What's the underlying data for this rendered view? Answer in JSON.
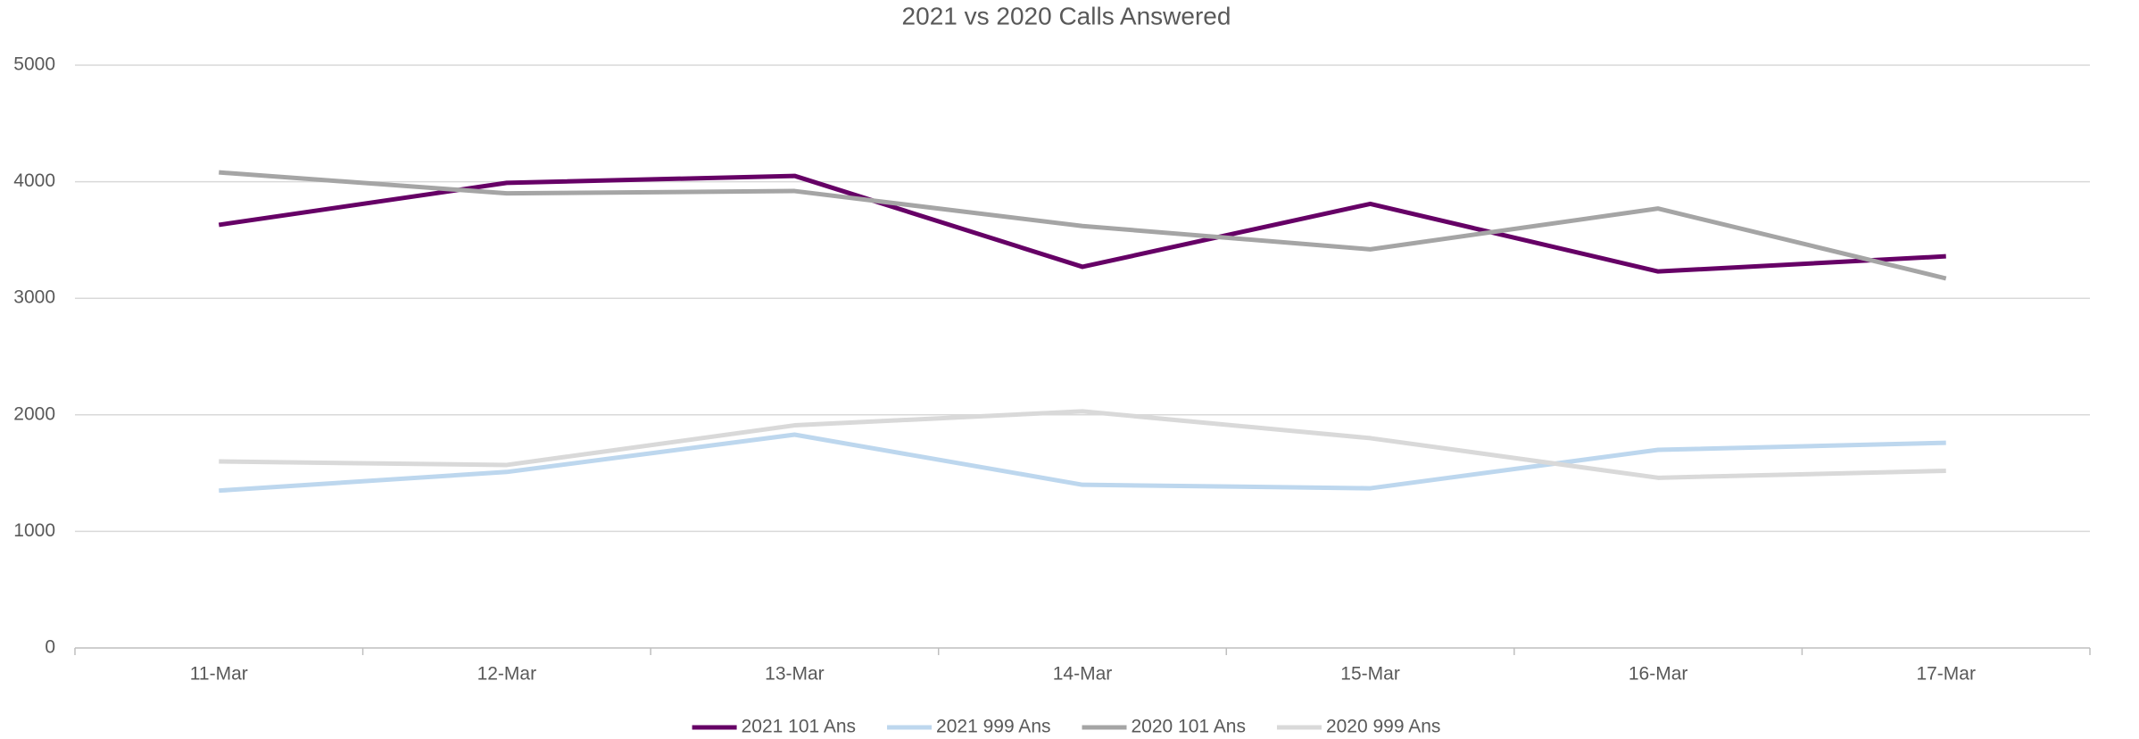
{
  "chart_data": {
    "type": "line",
    "title": "2021 vs 2020 Calls Answered",
    "categories": [
      "11-Mar",
      "12-Mar",
      "13-Mar",
      "14-Mar",
      "15-Mar",
      "16-Mar",
      "17-Mar"
    ],
    "series": [
      {
        "name": "2021 101 Ans",
        "color": "#660066",
        "values": [
          3630,
          3990,
          4050,
          3270,
          3810,
          3230,
          3360
        ]
      },
      {
        "name": "2021 999 Ans",
        "color": "#bdd7ee",
        "values": [
          1350,
          1510,
          1830,
          1400,
          1370,
          1700,
          1760
        ]
      },
      {
        "name": "2020 101 Ans",
        "color": "#a5a5a5",
        "values": [
          4080,
          3900,
          3920,
          3620,
          3420,
          3770,
          3170
        ]
      },
      {
        "name": "2020 999 Ans",
        "color": "#d9d9d9",
        "values": [
          1600,
          1570,
          1910,
          2030,
          1800,
          1460,
          1520
        ]
      }
    ],
    "ylim": [
      0,
      5000
    ],
    "yticks": [
      0,
      1000,
      2000,
      3000,
      4000,
      5000
    ],
    "grid": true,
    "legend": "bottom"
  }
}
